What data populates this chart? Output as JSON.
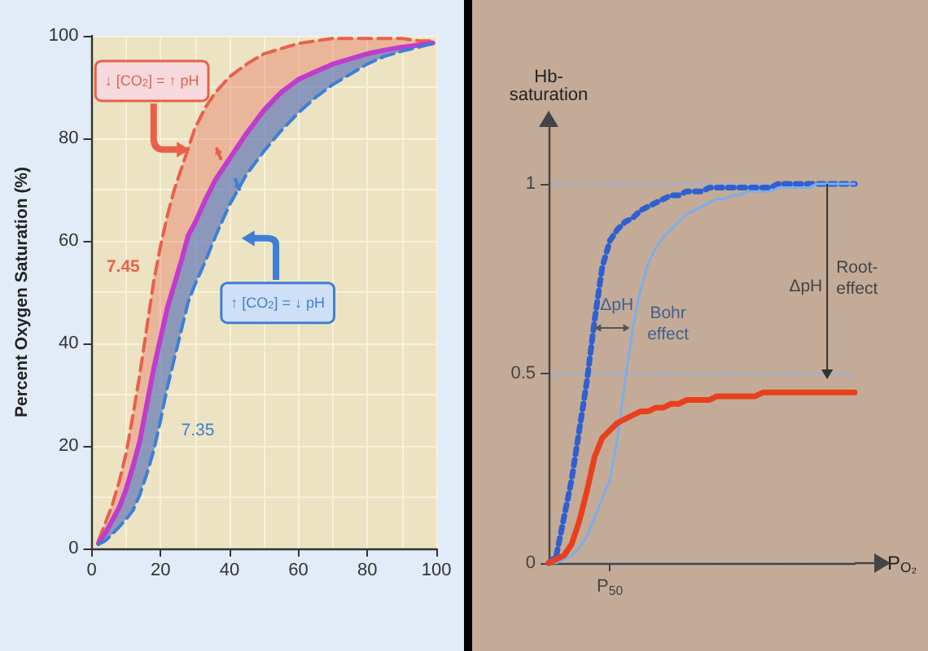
{
  "chart_data": [
    {
      "type": "line",
      "ylabel": "Percent Oxygen Saturation (%)",
      "xlim": [
        0,
        100
      ],
      "xticks": [
        0,
        20,
        40,
        60,
        80,
        100
      ],
      "ylim": [
        0,
        100
      ],
      "yticks": [
        0,
        20,
        40,
        60,
        80,
        100
      ],
      "grid": true,
      "marker": "none",
      "x": [
        2,
        4,
        6,
        8,
        10,
        12,
        14,
        16,
        18,
        20,
        22,
        24,
        26,
        28,
        30,
        33,
        36,
        40,
        45,
        50,
        55,
        60,
        65,
        70,
        75,
        80,
        85,
        90,
        95,
        99
      ],
      "series": [
        {
          "color": "#e8604c",
          "line_style": "dashed",
          "values": [
            1.5,
            5,
            8.5,
            13,
            18.5,
            26,
            34,
            43,
            52,
            59,
            65,
            70,
            74,
            78,
            82,
            86,
            89,
            92,
            94.5,
            96.5,
            97.5,
            98.5,
            99,
            99.5,
            99.5,
            99.5,
            99.5,
            99.5,
            99,
            99
          ]
        },
        {
          "color": "#c03ccc",
          "line_style": "solid",
          "values": [
            1,
            3,
            5.5,
            8,
            11.5,
            16,
            21,
            28,
            35,
            41,
            47,
            51.5,
            56,
            61,
            63.5,
            68,
            72,
            76,
            81,
            85.5,
            89,
            91.5,
            93,
            94.5,
            95.5,
            96.5,
            97.2,
            97.8,
            98.2,
            98.6
          ],
          "upper": [
            1.5,
            5,
            8.5,
            13,
            18.5,
            26,
            34,
            43,
            52,
            59,
            65,
            70,
            74,
            78,
            82,
            86,
            89,
            92,
            94.5,
            96.5,
            97.5,
            98.5,
            99,
            99.5,
            99.5,
            99.5,
            99.5,
            99.5,
            99,
            99
          ],
          "lower": [
            0.8,
            1.5,
            2.8,
            4.2,
            5.7,
            7.4,
            10.5,
            14.5,
            19,
            25,
            31.5,
            37,
            42.5,
            48,
            51.5,
            56,
            61,
            67,
            73,
            77.5,
            81.5,
            85,
            88,
            90.5,
            92.5,
            94.5,
            96,
            97,
            97.8,
            98.5
          ]
        },
        {
          "color": "#3d7fd6",
          "line_style": "dashed",
          "values": [
            0.8,
            1.5,
            2.8,
            4.2,
            5.7,
            7.4,
            10.5,
            14.5,
            19,
            25,
            31.5,
            37,
            42.5,
            48,
            51.5,
            56,
            61,
            67,
            73,
            77.5,
            81.5,
            85,
            88,
            90.5,
            92.5,
            94.5,
            96,
            97,
            97.8,
            98.5
          ]
        }
      ],
      "annotations": [
        "↓ [CO$_{2}$] = ↑ pH",
        "↑ [CO$_{2}$] = ↓ pH",
        "7.45",
        "7.35"
      ]
    },
    {
      "type": "line",
      "ylabel": "Hb-\nsaturation",
      "xlabel": "P$_{O₂}$",
      "ylim": [
        0,
        1.15
      ],
      "yticks": [
        0,
        0.5,
        1
      ],
      "grid": "y",
      "marker": "none",
      "categories": [
        null,
        null,
        null,
        null,
        null,
        null,
        null,
        null,
        "P$_{50}$",
        null,
        null,
        null,
        null,
        null,
        null,
        null,
        null,
        null,
        null,
        null,
        null,
        null,
        null,
        null,
        null,
        null,
        null,
        null,
        null,
        null,
        null,
        null,
        null,
        null,
        null,
        null,
        null,
        null,
        null,
        null,
        null
      ],
      "series": [
        {
          "color": "#2f5fd0",
          "line_style": "dotted",
          "values": [
            0,
            0.02,
            0.12,
            0.22,
            0.35,
            0.48,
            0.64,
            0.78,
            0.85,
            0.88,
            0.9,
            0.91,
            0.93,
            0.94,
            0.95,
            0.96,
            0.97,
            0.97,
            0.98,
            0.98,
            0.98,
            0.99,
            0.99,
            0.99,
            0.99,
            0.99,
            0.99,
            0.99,
            0.99,
            0.99,
            1,
            1,
            1,
            1,
            1,
            1,
            1,
            1,
            1,
            1,
            1
          ]
        },
        {
          "color": "#7aaeea",
          "line_style": "solid",
          "values": [
            0,
            0,
            0.01,
            0.02,
            0.04,
            0.07,
            0.12,
            0.17,
            0.22,
            0.33,
            0.48,
            0.62,
            0.72,
            0.79,
            0.83,
            0.86,
            0.88,
            0.9,
            0.92,
            0.93,
            0.94,
            0.95,
            0.96,
            0.96,
            0.97,
            0.97,
            0.98,
            0.98,
            0.98,
            0.98,
            0.99,
            0.99,
            0.99,
            0.99,
            0.99,
            1,
            1,
            1,
            1,
            1,
            1
          ]
        },
        {
          "color": "#e8401c",
          "line_style": "solid",
          "values": [
            0,
            0.01,
            0.02,
            0.05,
            0.11,
            0.19,
            0.28,
            0.33,
            0.35,
            0.37,
            0.38,
            0.39,
            0.4,
            0.4,
            0.41,
            0.41,
            0.42,
            0.42,
            0.43,
            0.43,
            0.43,
            0.43,
            0.44,
            0.44,
            0.44,
            0.44,
            0.44,
            0.44,
            0.45,
            0.45,
            0.45,
            0.45,
            0.45,
            0.45,
            0.45,
            0.45,
            0.45,
            0.45,
            0.45,
            0.45,
            0.45
          ]
        }
      ],
      "annotations": [
        "ΔpH",
        "Bohr\neffect",
        "ΔpH",
        "Root-\neffect"
      ]
    }
  ]
}
